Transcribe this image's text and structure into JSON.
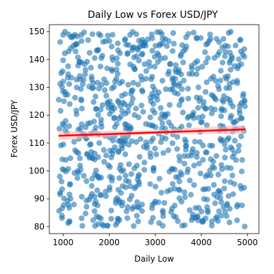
{
  "chart_data": {
    "type": "scatter",
    "title": "Daily Low vs Forex USD/JPY",
    "xlabel": "Daily Low",
    "ylabel": "Forex USD/JPY",
    "xlim": [
      700,
      5250
    ],
    "ylim": [
      77.5,
      152.5
    ],
    "xticks": [
      1000,
      2000,
      3000,
      4000,
      5000
    ],
    "yticks": [
      80,
      90,
      100,
      110,
      120,
      130,
      140,
      150
    ],
    "grid": false,
    "point_color": "#1f77b4",
    "point_alpha": 0.6,
    "trend_color": "#ff0000",
    "ci_band_color": "#ffb3b3",
    "scatter_points_visible_estimate": 850,
    "x_range_of_points": [
      900,
      4950
    ],
    "y_range_of_points": [
      80,
      150
    ],
    "trend_line": {
      "x": [
        900,
        4950
      ],
      "y": [
        112.6,
        114.9
      ]
    },
    "confidence_band": {
      "x": [
        900,
        2900,
        4950
      ],
      "lower": [
        111.0,
        113.2,
        113.2
      ],
      "upper": [
        114.2,
        114.6,
        116.6
      ]
    }
  }
}
